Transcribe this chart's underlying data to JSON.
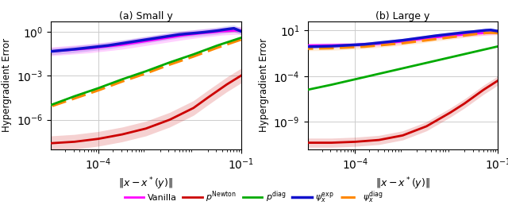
{
  "title_left": "(a) Small y",
  "title_right": "(b) Large y",
  "xlabel": "$\\|x - x^*(y)\\|$",
  "ylabel": "Hypergradient Error",
  "colors": {
    "vanilla": "#ff00ff",
    "pnewton": "#cc0000",
    "pdiag": "#00aa00",
    "psi_exp": "#1111cc",
    "psi_diag": "#ff8800"
  },
  "left": {
    "ylim": [
      1e-08,
      5
    ],
    "yticks": [
      1e-06,
      0.001,
      1.0
    ],
    "vanilla": {
      "x_log": [
        -1.0,
        -1.2,
        -1.4,
        -1.6,
        -1.8,
        -2.2,
        -2.8,
        -3.5,
        -4.2,
        -5.0
      ],
      "y_log": [
        0.08,
        0.06,
        0.02,
        -0.05,
        -0.1,
        -0.25,
        -0.55,
        -0.9,
        -1.15,
        -1.35
      ],
      "y_upper_log": [
        0.35,
        0.32,
        0.28,
        0.22,
        0.18,
        0.05,
        -0.25,
        -0.6,
        -0.85,
        -1.05
      ],
      "y_lower_log": [
        -0.18,
        -0.2,
        -0.24,
        -0.32,
        -0.38,
        -0.55,
        -0.85,
        -1.2,
        -1.45,
        -1.65
      ]
    },
    "pnewton": {
      "x_log": [
        -1.0,
        -1.3,
        -1.7,
        -2.0,
        -2.5,
        -3.0,
        -3.5,
        -4.0,
        -4.5,
        -5.0
      ],
      "y_log": [
        -3.0,
        -3.6,
        -4.5,
        -5.2,
        -6.0,
        -6.6,
        -7.0,
        -7.3,
        -7.5,
        -7.6
      ],
      "y_upper_log": [
        -2.5,
        -3.1,
        -4.0,
        -4.7,
        -5.5,
        -6.1,
        -6.5,
        -6.8,
        -7.0,
        -7.1
      ],
      "y_lower_log": [
        -3.5,
        -4.1,
        -5.0,
        -5.7,
        -6.5,
        -7.1,
        -7.5,
        -7.8,
        -8.0,
        -8.1
      ]
    },
    "pdiag": {
      "x_log": [
        -1.0,
        -1.5,
        -2.0,
        -2.5,
        -3.0,
        -3.5,
        -4.0,
        -4.5,
        -5.0
      ],
      "y_log": [
        -0.42,
        -0.95,
        -1.55,
        -2.1,
        -2.7,
        -3.25,
        -3.85,
        -4.4,
        -5.0
      ]
    },
    "psi_exp": {
      "x_log": [
        -1.0,
        -1.15,
        -1.25,
        -1.38,
        -1.5,
        -1.8,
        -2.3,
        -3.0,
        -3.8,
        -4.5,
        -5.0
      ],
      "y_log": [
        0.02,
        0.22,
        0.18,
        0.12,
        0.06,
        -0.05,
        -0.2,
        -0.55,
        -0.95,
        -1.2,
        -1.35
      ],
      "y_upper_log": [
        0.25,
        0.45,
        0.42,
        0.36,
        0.3,
        0.18,
        0.03,
        -0.32,
        -0.72,
        -0.97,
        -1.12
      ],
      "y_lower_log": [
        -0.21,
        -0.01,
        -0.06,
        -0.12,
        -0.18,
        -0.28,
        -0.43,
        -0.78,
        -1.18,
        -1.43,
        -1.58
      ]
    },
    "psi_diag": {
      "x_log": [
        -1.0,
        -1.5,
        -2.0,
        -2.5,
        -3.0,
        -3.5,
        -4.0,
        -4.5,
        -5.0
      ],
      "y_log": [
        -0.55,
        -1.1,
        -1.7,
        -2.25,
        -2.85,
        -3.4,
        -4.0,
        -4.55,
        -5.1
      ]
    }
  },
  "right": {
    "ylim": [
      1e-12,
      100.0
    ],
    "yticks": [
      1e-09,
      0.0001,
      10.0
    ],
    "vanilla": {
      "x_log": [
        -1.0,
        -1.5,
        -2.0,
        -2.5,
        -3.0,
        -3.5,
        -4.0,
        -4.5,
        -5.0
      ],
      "y_log": [
        0.82,
        0.65,
        0.42,
        0.15,
        -0.2,
        -0.45,
        -0.58,
        -0.62,
        -0.65
      ],
      "y_upper_log": [
        1.08,
        0.91,
        0.68,
        0.41,
        0.06,
        -0.19,
        -0.32,
        -0.36,
        -0.39
      ],
      "y_lower_log": [
        0.56,
        0.39,
        0.16,
        -0.11,
        -0.46,
        -0.71,
        -0.84,
        -0.88,
        -0.91
      ]
    },
    "pnewton": {
      "x_log": [
        -1.0,
        -1.3,
        -1.7,
        -2.0,
        -2.5,
        -3.0,
        -3.5,
        -4.0,
        -4.5,
        -5.0
      ],
      "y_log": [
        -4.5,
        -5.5,
        -7.0,
        -8.0,
        -9.5,
        -10.5,
        -11.0,
        -11.2,
        -11.3,
        -11.3
      ],
      "y_upper_log": [
        -4.0,
        -5.0,
        -6.5,
        -7.5,
        -9.0,
        -10.0,
        -10.5,
        -10.7,
        -10.8,
        -10.8
      ],
      "y_lower_log": [
        -5.0,
        -6.0,
        -7.5,
        -8.5,
        -10.0,
        -11.0,
        -11.5,
        -11.7,
        -11.8,
        -11.8
      ]
    },
    "pdiag": {
      "x_log": [
        -1.0,
        -1.5,
        -2.0,
        -2.5,
        -3.0,
        -3.5,
        -4.0,
        -4.5,
        -5.0
      ],
      "y_log": [
        -0.75,
        -1.35,
        -1.95,
        -2.55,
        -3.15,
        -3.75,
        -4.35,
        -4.95,
        -5.5
      ]
    },
    "psi_exp": {
      "x_log": [
        -1.0,
        -1.15,
        -1.25,
        -1.38,
        -1.5,
        -1.8,
        -2.3,
        -3.0,
        -3.8,
        -4.5,
        -5.0
      ],
      "y_log": [
        0.92,
        1.05,
        1.02,
        0.95,
        0.88,
        0.72,
        0.42,
        -0.08,
        -0.52,
        -0.72,
        -0.78
      ],
      "y_upper_log": [
        1.12,
        1.25,
        1.22,
        1.15,
        1.08,
        0.92,
        0.62,
        0.12,
        -0.32,
        -0.52,
        -0.58
      ],
      "y_lower_log": [
        0.72,
        0.85,
        0.82,
        0.75,
        0.68,
        0.52,
        0.22,
        -0.28,
        -0.72,
        -0.92,
        -0.98
      ]
    },
    "psi_diag": {
      "x_log": [
        -1.0,
        -1.15,
        -1.25,
        -1.38,
        -1.5,
        -1.8,
        -2.3,
        -3.0,
        -3.8,
        -4.5,
        -5.0
      ],
      "y_log": [
        0.72,
        0.75,
        0.72,
        0.65,
        0.58,
        0.38,
        0.05,
        -0.4,
        -0.78,
        -0.95,
        -1.0
      ],
      "y_upper_log": [
        0.95,
        0.98,
        0.95,
        0.88,
        0.81,
        0.61,
        0.28,
        -0.17,
        -0.55,
        -0.72,
        -0.77
      ],
      "y_lower_log": [
        0.49,
        0.52,
        0.49,
        0.42,
        0.35,
        0.15,
        -0.18,
        -0.63,
        -1.01,
        -1.18,
        -1.23
      ]
    }
  }
}
